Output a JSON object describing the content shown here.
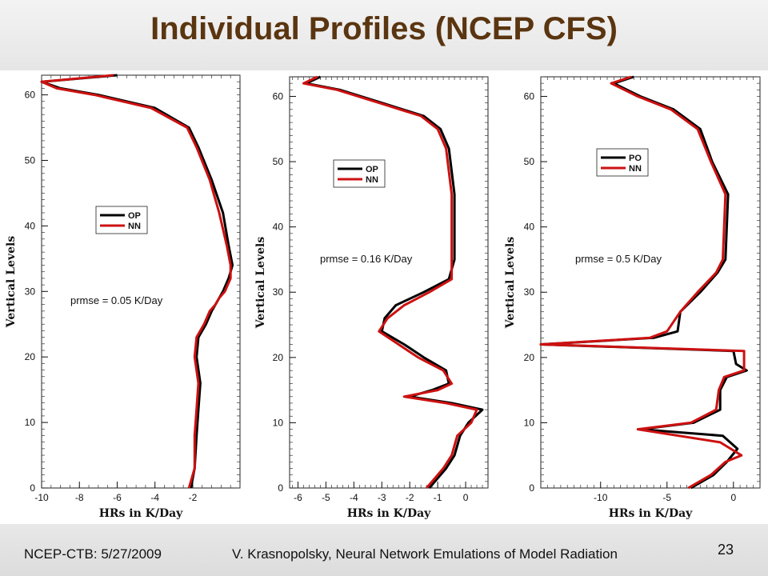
{
  "slide": {
    "title": "Individual Profiles (NCEP CFS)",
    "footer_left": "NCEP-CTB: 5/27/2009",
    "footer_mid": "V. Krasnopolsky, Neural Network Emulations of Model Radiation",
    "page_number": "23"
  },
  "chart_data": [
    {
      "type": "line",
      "xlabel": "HRs in K/Day",
      "ylabel": "Vertical Levels",
      "xlim": [
        -10,
        0.5
      ],
      "ylim": [
        0,
        63
      ],
      "xticks": [
        -10,
        -8,
        -6,
        -4,
        -2
      ],
      "yticks": [
        0,
        10,
        20,
        30,
        40,
        50,
        60
      ],
      "annotation": "prmse = 0.05 K/Day",
      "legend_placement": "center",
      "series": [
        {
          "name": "OP",
          "color": "#000000",
          "points": [
            [
              -2.1,
              0
            ],
            [
              -1.9,
              3
            ],
            [
              -1.8,
              8
            ],
            [
              -1.7,
              12
            ],
            [
              -1.6,
              16
            ],
            [
              -1.8,
              20
            ],
            [
              -1.7,
              23
            ],
            [
              -1.3,
              25
            ],
            [
              -1.0,
              27
            ],
            [
              -0.8,
              28
            ],
            [
              -0.6,
              29
            ],
            [
              -0.4,
              30
            ],
            [
              -0.1,
              32
            ],
            [
              0.1,
              34
            ],
            [
              -0.1,
              37
            ],
            [
              -0.4,
              42
            ],
            [
              -1.0,
              47
            ],
            [
              -1.7,
              52
            ],
            [
              -2.2,
              55
            ],
            [
              -4,
              58
            ],
            [
              -7,
              60
            ],
            [
              -9,
              61
            ],
            [
              -10,
              62
            ],
            [
              -6,
              63
            ]
          ]
        },
        {
          "name": "NN",
          "color": "#cc1111",
          "points": [
            [
              -2.2,
              0
            ],
            [
              -1.9,
              3
            ],
            [
              -1.9,
              8
            ],
            [
              -1.8,
              12
            ],
            [
              -1.7,
              16
            ],
            [
              -1.9,
              20
            ],
            [
              -1.8,
              23
            ],
            [
              -1.4,
              25
            ],
            [
              -1.1,
              27
            ],
            [
              -0.8,
              28
            ],
            [
              -0.6,
              29
            ],
            [
              -0.3,
              30
            ],
            [
              0.0,
              32
            ],
            [
              0.0,
              34
            ],
            [
              -0.2,
              37
            ],
            [
              -0.6,
              42
            ],
            [
              -1.1,
              47
            ],
            [
              -1.8,
              52
            ],
            [
              -2.3,
              55
            ],
            [
              -4.2,
              58
            ],
            [
              -7.2,
              60
            ],
            [
              -9.2,
              61
            ],
            [
              -10,
              62
            ],
            [
              -6.2,
              63
            ]
          ]
        }
      ]
    },
    {
      "type": "line",
      "xlabel": "HRs in K/Day",
      "ylabel": "Vertical Levels",
      "xlim": [
        -6.3,
        0.8
      ],
      "ylim": [
        0,
        63
      ],
      "xticks": [
        -6,
        -5,
        -4,
        -3,
        -2,
        -1,
        0
      ],
      "yticks": [
        0,
        10,
        20,
        30,
        40,
        50,
        60
      ],
      "annotation": "prmse = 0.16 K/Day",
      "legend_placement": "upper-center",
      "series": [
        {
          "name": "OP",
          "color": "#000000",
          "points": [
            [
              -1.3,
              0
            ],
            [
              -0.7,
              3
            ],
            [
              -0.4,
              5
            ],
            [
              -0.2,
              8
            ],
            [
              0.1,
              10
            ],
            [
              0.6,
              12
            ],
            [
              -0.5,
              13
            ],
            [
              -2.0,
              14
            ],
            [
              -1.2,
              15
            ],
            [
              -0.6,
              16
            ],
            [
              -0.7,
              18
            ],
            [
              -1.5,
              20
            ],
            [
              -2.2,
              22
            ],
            [
              -3.0,
              24
            ],
            [
              -2.9,
              26
            ],
            [
              -2.5,
              28
            ],
            [
              -1.5,
              30
            ],
            [
              -0.6,
              32
            ],
            [
              -0.4,
              35
            ],
            [
              -0.4,
              45
            ],
            [
              -0.6,
              52
            ],
            [
              -0.9,
              55
            ],
            [
              -1.5,
              57
            ],
            [
              -3.0,
              59
            ],
            [
              -4.5,
              61
            ],
            [
              -5.7,
              62
            ],
            [
              -5.2,
              63
            ]
          ]
        },
        {
          "name": "NN",
          "color": "#cc1111",
          "points": [
            [
              -1.4,
              0
            ],
            [
              -0.8,
              3
            ],
            [
              -0.5,
              5
            ],
            [
              -0.3,
              8
            ],
            [
              0.2,
              10
            ],
            [
              0.4,
              12
            ],
            [
              -0.7,
              13
            ],
            [
              -2.2,
              14
            ],
            [
              -1.0,
              15
            ],
            [
              -0.5,
              16
            ],
            [
              -0.8,
              18
            ],
            [
              -1.7,
              20
            ],
            [
              -2.4,
              22
            ],
            [
              -3.1,
              24
            ],
            [
              -2.8,
              26
            ],
            [
              -2.2,
              28
            ],
            [
              -1.3,
              30
            ],
            [
              -0.5,
              32
            ],
            [
              -0.5,
              35
            ],
            [
              -0.5,
              45
            ],
            [
              -0.7,
              52
            ],
            [
              -1.0,
              55
            ],
            [
              -1.6,
              57
            ],
            [
              -3.1,
              59
            ],
            [
              -4.6,
              61
            ],
            [
              -5.8,
              62
            ],
            [
              -5.3,
              63
            ]
          ]
        }
      ]
    },
    {
      "type": "line",
      "xlabel": "HRs in K/Day",
      "ylabel": "Vertical Levels",
      "xlim": [
        -14.5,
        2
      ],
      "ylim": [
        0,
        63
      ],
      "xticks": [
        -10,
        -5,
        0
      ],
      "yticks": [
        0,
        10,
        20,
        30,
        40,
        50,
        60
      ],
      "annotation": "prmse = 0.5 K/Day",
      "legend_placement": "upper-center",
      "series": [
        {
          "name": "PO",
          "color": "#000000",
          "points": [
            [
              -3.2,
              0
            ],
            [
              -1.5,
              2
            ],
            [
              -0.5,
              4
            ],
            [
              0.3,
              6
            ],
            [
              -0.8,
              8
            ],
            [
              -7.0,
              9
            ],
            [
              -3.0,
              10
            ],
            [
              -1.0,
              12
            ],
            [
              -1.0,
              15
            ],
            [
              -0.5,
              17
            ],
            [
              1.0,
              18
            ],
            [
              0.2,
              19
            ],
            [
              0.0,
              21
            ],
            [
              -14.5,
              22
            ],
            [
              -6.0,
              23
            ],
            [
              -4.2,
              24
            ],
            [
              -4.0,
              27
            ],
            [
              -2.5,
              30
            ],
            [
              -1.2,
              33
            ],
            [
              -0.6,
              35
            ],
            [
              -0.4,
              45
            ],
            [
              -1.6,
              50
            ],
            [
              -2.5,
              55
            ],
            [
              -4.5,
              58
            ],
            [
              -7.0,
              60
            ],
            [
              -9,
              62
            ],
            [
              -7.5,
              63
            ]
          ]
        },
        {
          "name": "NN",
          "color": "#cc1111",
          "points": [
            [
              -3.4,
              0
            ],
            [
              -1.7,
              2
            ],
            [
              -0.6,
              4
            ],
            [
              0.6,
              5
            ],
            [
              -1.0,
              7
            ],
            [
              -7.2,
              9
            ],
            [
              -3.2,
              10
            ],
            [
              -1.3,
              12
            ],
            [
              -1.1,
              15
            ],
            [
              -0.7,
              17
            ],
            [
              0.8,
              18
            ],
            [
              0.8,
              19
            ],
            [
              0.8,
              21
            ],
            [
              -14.5,
              22
            ],
            [
              -6.3,
              23
            ],
            [
              -5.0,
              24
            ],
            [
              -4.0,
              27
            ],
            [
              -2.7,
              30
            ],
            [
              -1.3,
              33
            ],
            [
              -0.8,
              35
            ],
            [
              -0.6,
              45
            ],
            [
              -1.7,
              50
            ],
            [
              -2.7,
              55
            ],
            [
              -4.7,
              58
            ],
            [
              -7.2,
              60
            ],
            [
              -9.2,
              62
            ],
            [
              -7.7,
              63
            ]
          ]
        }
      ]
    }
  ]
}
